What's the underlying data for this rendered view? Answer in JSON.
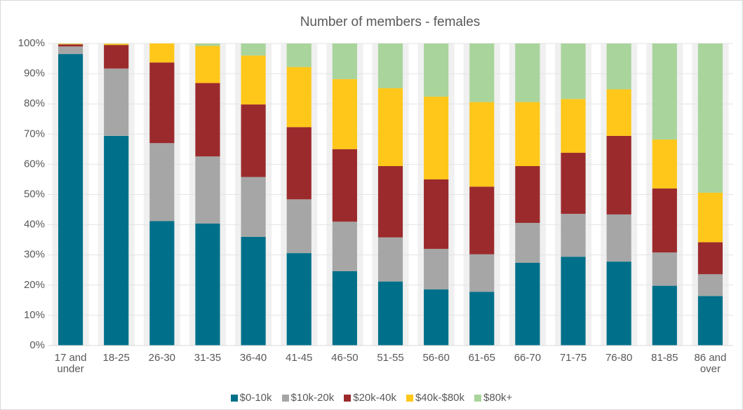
{
  "chart_data": {
    "type": "stacked_bar",
    "title": "Number of members - females",
    "categories": [
      "17 and under",
      "18-25",
      "26-30",
      "31-35",
      "36-40",
      "41-45",
      "46-50",
      "51-55",
      "56-60",
      "61-65",
      "66-70",
      "71-75",
      "76-80",
      "81-85",
      "86 and over"
    ],
    "series": [
      {
        "name": "$0-10k",
        "color": "#00708a",
        "values": [
          96.5,
          69.4,
          41.2,
          40.4,
          36.0,
          30.6,
          24.6,
          21.2,
          18.6,
          17.8,
          27.4,
          29.4,
          27.8,
          19.8,
          16.4
        ]
      },
      {
        "name": "$10k-20k",
        "color": "#a6a6a6",
        "values": [
          2.5,
          22.3,
          25.8,
          22.2,
          19.8,
          17.8,
          16.4,
          14.6,
          13.4,
          12.4,
          13.2,
          14.2,
          15.6,
          11.0,
          7.2
        ]
      },
      {
        "name": "$20k-40k",
        "color": "#9b2a2c",
        "values": [
          0.7,
          7.8,
          26.7,
          24.3,
          24.0,
          23.9,
          24.0,
          23.6,
          23.0,
          22.4,
          18.8,
          20.2,
          26.0,
          21.2,
          10.6
        ]
      },
      {
        "name": "$40k-$80k",
        "color": "#ffc71a",
        "values": [
          0.2,
          0.4,
          6.3,
          12.3,
          16.2,
          19.9,
          23.2,
          25.8,
          27.4,
          28.0,
          21.2,
          17.8,
          15.4,
          16.2,
          16.4
        ]
      },
      {
        "name": "$80k+",
        "color": "#a9d49c",
        "values": [
          0.1,
          0.1,
          0,
          0.8,
          4.0,
          7.8,
          11.8,
          14.8,
          17.6,
          19.4,
          19.4,
          18.4,
          15.2,
          31.8,
          49.4
        ]
      }
    ],
    "ylim": [
      0,
      100
    ],
    "yticks": [
      {
        "value": 0,
        "label": "0%"
      },
      {
        "value": 10,
        "label": "10%"
      },
      {
        "value": 20,
        "label": "20%"
      },
      {
        "value": 30,
        "label": "30%"
      },
      {
        "value": 40,
        "label": "40%"
      },
      {
        "value": 50,
        "label": "50%"
      },
      {
        "value": 60,
        "label": "60%"
      },
      {
        "value": 70,
        "label": "70%"
      },
      {
        "value": 80,
        "label": "80%"
      },
      {
        "value": 90,
        "label": "90%"
      },
      {
        "value": 100,
        "label": "100%"
      }
    ],
    "legend": "bottom"
  }
}
